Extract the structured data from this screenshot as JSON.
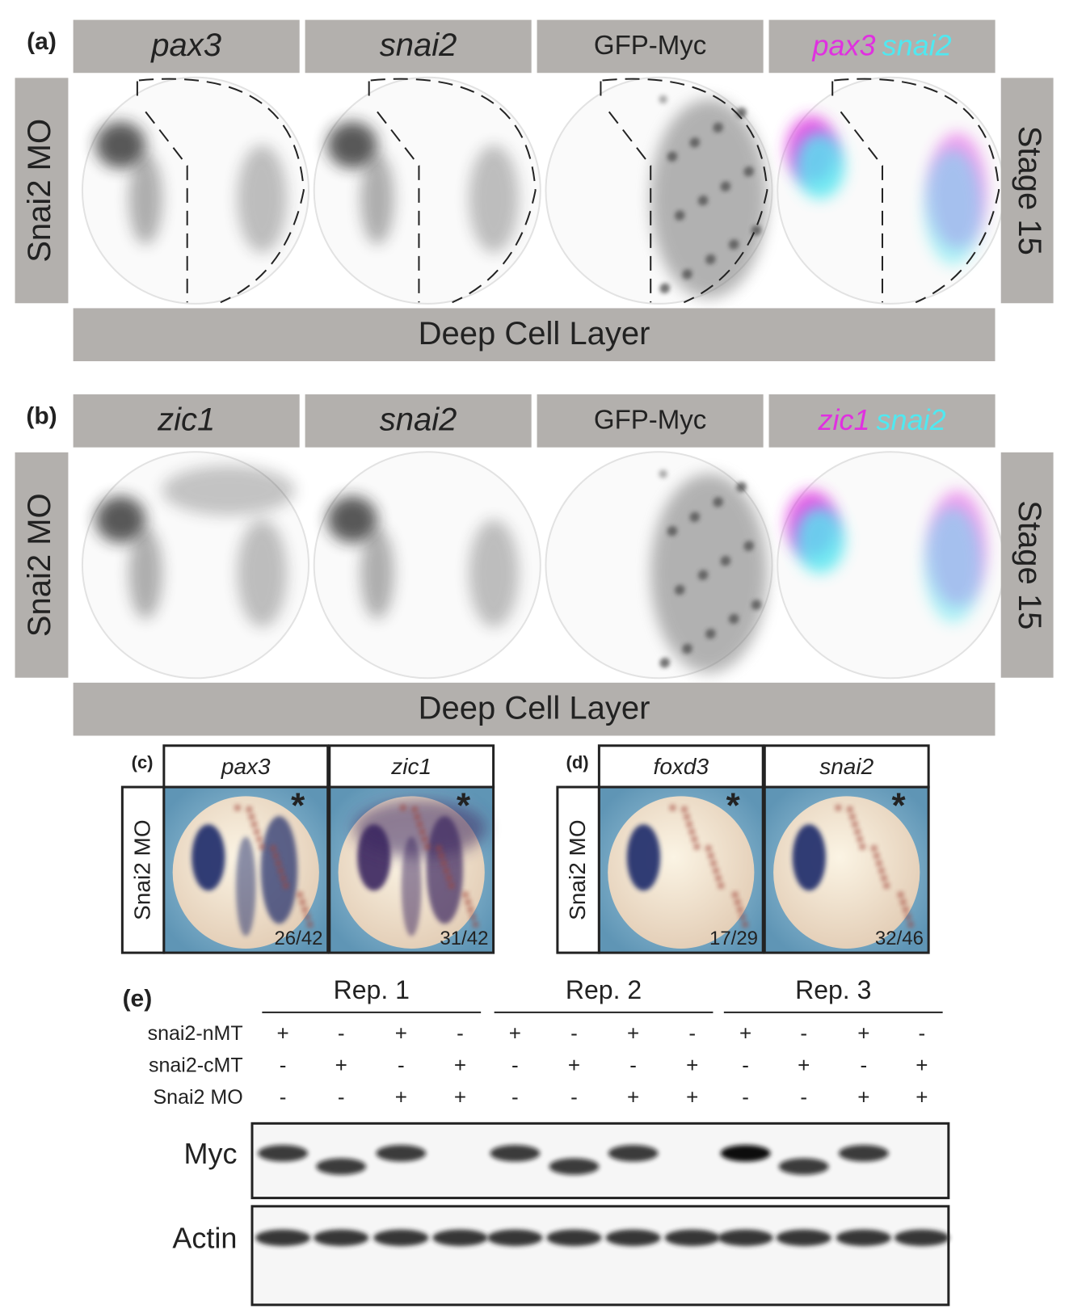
{
  "panels": [
    {
      "label": "(a)",
      "headers": [
        "pax3",
        "snai2",
        "GFP-Myc"
      ],
      "merge": [
        {
          "text": "pax3",
          "color": "#e030e0"
        },
        {
          "text": "snai2",
          "color": "#50e8f0"
        }
      ],
      "side": "Snai2 MO",
      "stage": "Stage 15",
      "layer": "Deep Cell Layer"
    },
    {
      "label": "(b)",
      "headers": [
        "zic1",
        "snai2",
        "GFP-Myc"
      ],
      "merge": [
        {
          "text": "zic1",
          "color": "#e030e0"
        },
        {
          "text": "snai2",
          "color": "#50e8f0"
        }
      ],
      "side": "Snai2 MO",
      "stage": "Stage 15",
      "layer": "Deep Cell Layer"
    }
  ],
  "insets": [
    {
      "label": "(c)",
      "side": "Snai2 MO",
      "columns": [
        {
          "gene": "pax3",
          "count": "26/42",
          "mark": "*"
        },
        {
          "gene": "zic1",
          "count": "31/42",
          "mark": "*"
        }
      ]
    },
    {
      "label": "(d)",
      "side": "Snai2 MO",
      "columns": [
        {
          "gene": "foxd3",
          "count": "17/29",
          "mark": "*"
        },
        {
          "gene": "snai2",
          "count": "32/46",
          "mark": "*"
        }
      ]
    }
  ],
  "blot": {
    "label": "(e)",
    "reps": [
      "Rep. 1",
      "Rep. 2",
      "Rep. 3"
    ],
    "rows": [
      {
        "name": "snai2-nMT",
        "signs": [
          "+",
          "-",
          "+",
          "-",
          "+",
          "-",
          "+",
          "-",
          "+",
          "-",
          "+",
          "-"
        ]
      },
      {
        "name": "snai2-cMT",
        "signs": [
          "-",
          "+",
          "-",
          "+",
          "-",
          "+",
          "-",
          "+",
          "-",
          "+",
          "-",
          "+"
        ]
      },
      {
        "name": "Snai2 MO",
        "signs": [
          "-",
          "-",
          "+",
          "+",
          "-",
          "-",
          "+",
          "+",
          "-",
          "-",
          "+",
          "+"
        ]
      }
    ],
    "probes": [
      "Myc",
      "Actin"
    ]
  }
}
